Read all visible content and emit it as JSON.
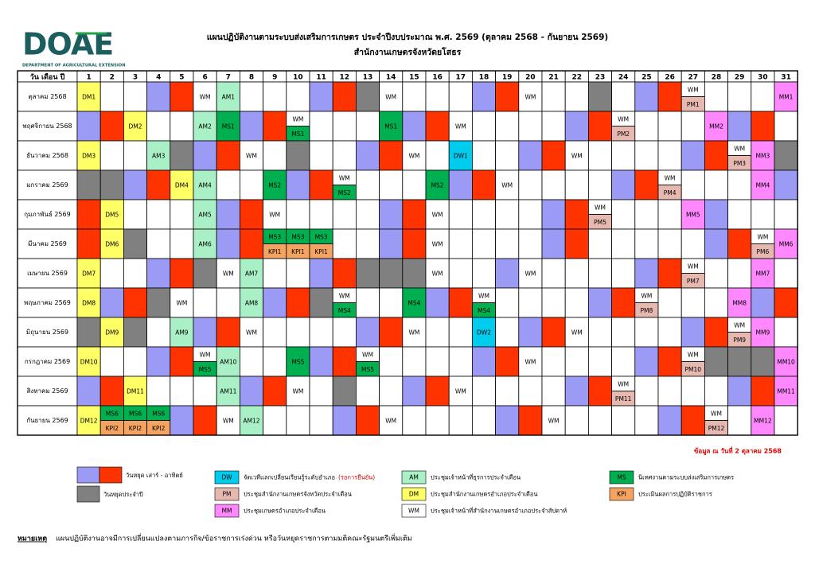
{
  "header": {
    "logo": "DOAE",
    "logo_sub": "DEPARTMENT OF AGRICULTURAL EXTENSION",
    "title": "แผนปฏิบัติงานตามระบบส่งเสริมการเกษตร ประจำปีงบประมาณ พ.ศ. 2569 (ตุลาคม 2568 - กันยายน 2569)",
    "subtitle": "สำนักงานเกษตรจังหวัดยโสธร"
  },
  "table": {
    "corner": "วัน เดือน ปี",
    "days": [
      1,
      2,
      3,
      4,
      5,
      6,
      7,
      8,
      9,
      10,
      11,
      12,
      13,
      14,
      15,
      16,
      17,
      18,
      19,
      20,
      21,
      22,
      23,
      24,
      25,
      26,
      27,
      28,
      29,
      30,
      31
    ],
    "fills": {
      ".": "#ffffff",
      "s": "#9b9bf5",
      "u": "#ff3300",
      "h": "#808080",
      "x": "#ffffff"
    },
    "months": [
      {
        "name": "ตุลาคม 2568",
        "fill": "...su.....suh....su...h.su.....",
        "cells": [
          "DM1",
          null,
          null,
          null,
          null,
          "WM",
          "AM1",
          null,
          null,
          null,
          null,
          null,
          null,
          "WM",
          null,
          null,
          null,
          null,
          null,
          "WM",
          null,
          null,
          null,
          null,
          null,
          null,
          [
            "WM",
            "PM1"
          ],
          null,
          null,
          null,
          "MM1"
        ]
      },
      {
        "name": "พฤศจิกายน 2568",
        "fill": "su.....su.....su.....su.....sux",
        "cells": [
          null,
          null,
          "DM2",
          null,
          null,
          "AM2",
          "MS1",
          null,
          null,
          [
            "WM",
            "MS1"
          ],
          null,
          null,
          null,
          "MS1",
          null,
          null,
          "WM",
          null,
          null,
          null,
          null,
          null,
          null,
          [
            "WM",
            "PM2"
          ],
          null,
          null,
          null,
          "MM2",
          null,
          null,
          null
        ]
      },
      {
        "name": "ธันวาคม 2568",
        "fill": "....hsu..h..su.....su.....su..h",
        "cells": [
          "DM3",
          null,
          null,
          "AM3",
          null,
          null,
          null,
          "WM",
          null,
          null,
          null,
          null,
          null,
          null,
          "WM",
          null,
          "DW1",
          null,
          null,
          null,
          null,
          "WM",
          null,
          null,
          null,
          null,
          null,
          null,
          [
            "WM",
            "PM3"
          ],
          "MM3",
          null
        ]
      },
      {
        "name": "มกราคม 2569",
        "fill": "hhsu.....su.....su.....su.....s",
        "cells": [
          null,
          null,
          null,
          null,
          "DM4",
          "AM4",
          null,
          null,
          "MS2",
          null,
          null,
          [
            "WM",
            "MS2"
          ],
          null,
          null,
          null,
          "MS2",
          null,
          null,
          "WM",
          null,
          null,
          null,
          null,
          null,
          null,
          [
            "WM",
            "PM4"
          ],
          null,
          null,
          null,
          "MM4",
          null
        ]
      },
      {
        "name": "กุมภาพันธ์ 2569",
        "fill": "u.....su.....su.....su.....sxxx",
        "cells": [
          null,
          "DM5",
          null,
          null,
          null,
          "AM5",
          null,
          null,
          "WM",
          null,
          null,
          null,
          null,
          null,
          null,
          "WM",
          null,
          null,
          null,
          null,
          null,
          null,
          [
            "WM",
            "PM5"
          ],
          null,
          null,
          null,
          "MM5",
          null,
          null,
          null,
          null
        ]
      },
      {
        "name": "มีนาคม 2569",
        "fill": "u.h...su.....su.....su.....su..",
        "cells": [
          null,
          "DM6",
          null,
          null,
          null,
          "AM6",
          null,
          null,
          [
            "MS3",
            "KPI1"
          ],
          [
            "MS3",
            "KPI1"
          ],
          [
            "MS3",
            "KPI1"
          ],
          null,
          null,
          null,
          null,
          "WM",
          null,
          null,
          null,
          null,
          null,
          null,
          null,
          null,
          null,
          null,
          null,
          null,
          null,
          [
            "WM",
            "PM6"
          ],
          "MM6"
        ]
      },
      {
        "name": "เมษายน 2569",
        "fill": "...suh....suhhh...su....su....x",
        "cells": [
          "DM7",
          null,
          null,
          null,
          null,
          null,
          "WM",
          "AM7",
          null,
          null,
          null,
          null,
          null,
          null,
          null,
          "WM",
          null,
          null,
          null,
          "WM",
          null,
          null,
          null,
          null,
          null,
          null,
          [
            "WM",
            "PM7"
          ],
          null,
          null,
          "MM7",
          null
        ]
      },
      {
        "name": "พฤษภาคม 2569",
        "fill": ".suh....suh....su.....su.....su",
        "cells": [
          "DM8",
          null,
          null,
          null,
          "WM",
          null,
          null,
          "AM8",
          null,
          null,
          null,
          [
            "WM",
            "MS4"
          ],
          null,
          null,
          "MS4",
          null,
          null,
          [
            "WM",
            "MS4"
          ],
          null,
          null,
          null,
          null,
          null,
          null,
          [
            "WM",
            "PM8"
          ],
          null,
          null,
          null,
          "MM8",
          null,
          null
        ]
      },
      {
        "name": "มิถุนายน 2569",
        "fill": "h.h..su.....su.....su.....su..x",
        "cells": [
          null,
          "DM9",
          null,
          null,
          "AM9",
          null,
          null,
          "WM",
          null,
          null,
          null,
          null,
          null,
          null,
          "WM",
          null,
          null,
          "DW2",
          null,
          null,
          null,
          "WM",
          null,
          null,
          null,
          null,
          null,
          null,
          [
            "WM",
            "PM9"
          ],
          "MM9",
          null
        ]
      },
      {
        "name": "กรกฎาคม 2569",
        "fill": "...su.....su.....su.....su.hhh.",
        "cells": [
          "DM10",
          null,
          null,
          null,
          null,
          [
            "WM",
            "MS5"
          ],
          "AM10",
          null,
          null,
          "MS5",
          null,
          null,
          [
            "WM",
            "MS5"
          ],
          null,
          null,
          null,
          null,
          null,
          null,
          "WM",
          null,
          null,
          null,
          null,
          null,
          null,
          [
            "WM",
            "PM10"
          ],
          null,
          null,
          null,
          "MM10"
        ]
      },
      {
        "name": "สิงหาคม 2569",
        "fill": "su.....su..h..su.....su.....su.",
        "cells": [
          null,
          null,
          "DM11",
          null,
          null,
          null,
          "AM11",
          null,
          null,
          "WM",
          null,
          null,
          null,
          null,
          null,
          null,
          "WM",
          null,
          null,
          null,
          null,
          null,
          null,
          [
            "WM",
            "PM11"
          ],
          null,
          null,
          null,
          null,
          null,
          null,
          "MM11"
        ]
      },
      {
        "name": "กันยายน 2569",
        "fill": "....su.....su.....su.....su...x",
        "cells": [
          "DM12",
          [
            "MS6",
            "KPI2"
          ],
          [
            "MS6",
            "KPI2"
          ],
          [
            "MS6",
            "KPI2"
          ],
          null,
          null,
          "WM",
          "AM12",
          null,
          null,
          null,
          null,
          null,
          "WM",
          null,
          null,
          null,
          null,
          null,
          null,
          "WM",
          null,
          null,
          null,
          null,
          null,
          null,
          [
            "WM",
            "PM12"
          ],
          null,
          "MM12",
          null
        ]
      }
    ]
  },
  "as_of": "ข้อมูล ณ วันที่ 2 ตุลาคม 2568",
  "legend": {
    "weekend": "วันหยุด เสาร์ - อาทิตย์",
    "holiday": "วันหยุดประจำปี",
    "items": [
      {
        "code": "DW",
        "color": "#00ccee",
        "text": "จัดเวทีแลกเปลี่ยนเรียนรู้ระดับอำเภอ",
        "note": "(รอการยืนยัน)"
      },
      {
        "code": "PM",
        "color": "#e6b8af",
        "text": "ประชุมสำนักงานเกษตรจังหวัดประจำเดือน"
      },
      {
        "code": "MM",
        "color": "#ff88ff",
        "text": "ประชุมเกษตรอำเภอประจำเดือน"
      },
      {
        "code": "AM",
        "color": "#a9f0c6",
        "text": "ประชุมเจ้าหน้าที่ธุรการประจำเดือน"
      },
      {
        "code": "DM",
        "color": "#ffff66",
        "text": "ประชุมสำนักงานเกษตรอำเภอประจำเดือน"
      },
      {
        "code": "WM",
        "color": "#ffffff",
        "text": "ประชุมเจ้าหน้าที่สำนักงานเกษตรอำเภอประจำสัปดาห์"
      },
      {
        "code": "MS",
        "color": "#00b050",
        "text": "นิเทศงานตามระบบส่งเสริมการเกษตร"
      },
      {
        "code": "KPI",
        "color": "#f4a460",
        "text": "ประเมินผลการปฏิบัติราชการ"
      }
    ]
  },
  "footer": {
    "label": "หมายเหตุ",
    "text": "แผนปฏิบัติงานอาจมีการเปลี่ยนแปลงตามภารกิจ/ข้อราชการเร่งด่วน หรือวันหยุดราชการตามมติคณะรัฐมนตรีเพิ่มเติม"
  }
}
